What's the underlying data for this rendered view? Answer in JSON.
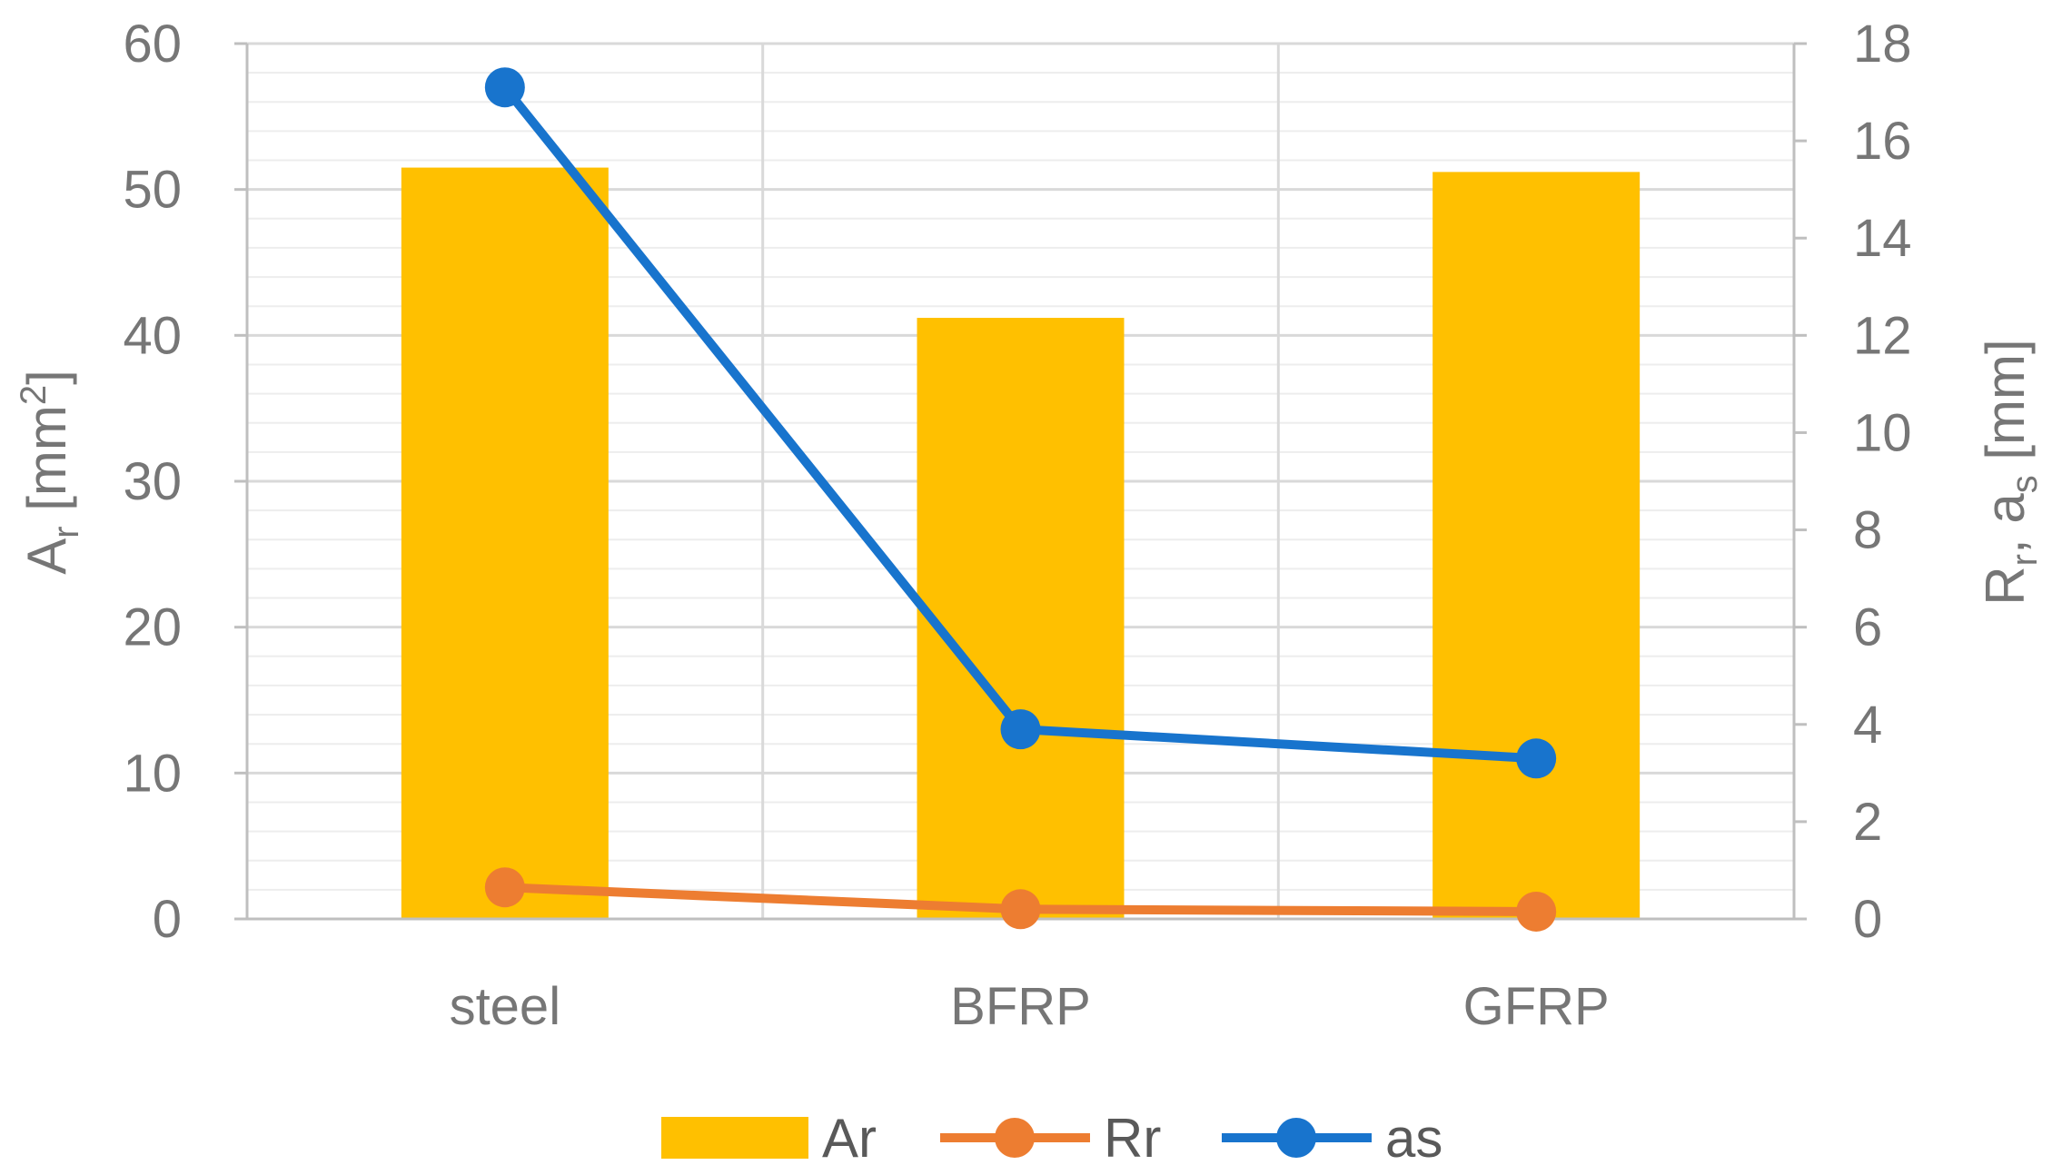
{
  "chart_data": {
    "type": "bar",
    "categories": [
      "steel",
      "BFRP",
      "GFRP"
    ],
    "series": [
      {
        "name": "Ar",
        "kind": "bar",
        "axis": "left",
        "values": [
          51.5,
          41.2,
          51.2
        ],
        "color": "#FFC000"
      },
      {
        "name": "Rr",
        "kind": "line",
        "axis": "right",
        "values": [
          0.65,
          0.2,
          0.15
        ],
        "color": "#ED7D31"
      },
      {
        "name": "as",
        "kind": "line",
        "axis": "right",
        "values": [
          17.1,
          3.9,
          3.3
        ],
        "color": "#1874CD"
      }
    ],
    "y_left": {
      "title_main": "A",
      "title_sub": "r",
      "title_rest": " [mm",
      "title_sup": "2",
      "title_end": "]",
      "range": [
        0,
        60
      ],
      "ticks": [
        "0",
        "10",
        "20",
        "30",
        "40",
        "50",
        "60"
      ]
    },
    "y_right": {
      "title_a": "R",
      "title_a_sub": "r",
      "title_mid": ", a",
      "title_b_sub": "s",
      "title_end": " [mm]",
      "range": [
        0,
        18
      ],
      "ticks": [
        "0",
        "2",
        "4",
        "6",
        "8",
        "10",
        "12",
        "14",
        "16",
        "18"
      ]
    },
    "grid": true,
    "legend_position": "bottom",
    "colors": {
      "grid": "#D9D9D9",
      "axis": "#BFBFBF",
      "text": "#767676"
    }
  }
}
